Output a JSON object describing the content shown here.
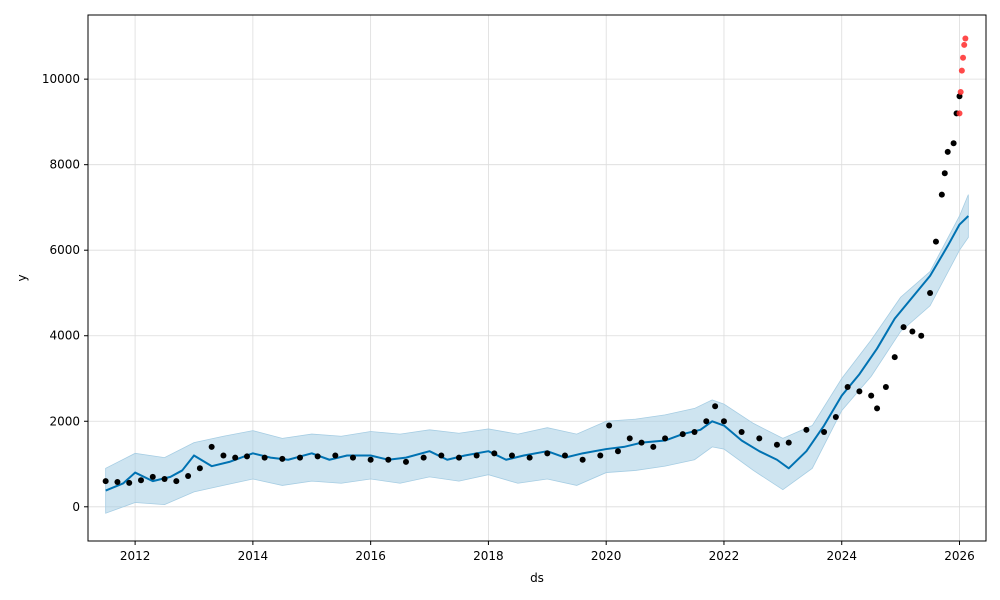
{
  "chart_data": {
    "type": "scatter",
    "title": "",
    "xlabel": "ds",
    "ylabel": "y",
    "xlim": [
      2011.2,
      2026.45
    ],
    "ylim": [
      -800,
      11500
    ],
    "x_ticks": [
      2012,
      2014,
      2016,
      2018,
      2020,
      2022,
      2024,
      2026
    ],
    "x_tick_labels": [
      "2012",
      "2014",
      "2016",
      "2018",
      "2020",
      "2022",
      "2024",
      "2026"
    ],
    "y_ticks": [
      0,
      2000,
      4000,
      6000,
      8000,
      10000
    ],
    "y_tick_labels": [
      "0",
      "2000",
      "4000",
      "6000",
      "8000",
      "10000"
    ],
    "grid": true,
    "colors": {
      "observed": "#000000",
      "outlier": "#ff2a2a",
      "forecast": "#0072B2",
      "interval": "#a6cde3"
    },
    "series": [
      {
        "kind": "uncertainty_band",
        "x": [
          2011.5,
          2012.0,
          2012.5,
          2013.0,
          2013.5,
          2014.0,
          2014.5,
          2015.0,
          2015.5,
          2016.0,
          2016.5,
          2017.0,
          2017.5,
          2018.0,
          2018.5,
          2019.0,
          2019.5,
          2020.0,
          2020.5,
          2021.0,
          2021.5,
          2021.8,
          2022.0,
          2022.5,
          2023.0,
          2023.5,
          2024.0,
          2024.5,
          2025.0,
          2025.5,
          2026.0,
          2026.15
        ],
        "upper": [
          900,
          1250,
          1150,
          1500,
          1650,
          1780,
          1600,
          1700,
          1650,
          1760,
          1700,
          1800,
          1720,
          1820,
          1700,
          1850,
          1700,
          2000,
          2050,
          2150,
          2300,
          2500,
          2400,
          1950,
          1600,
          1900,
          3000,
          3900,
          4900,
          5500,
          6800,
          7300
        ],
        "lower": [
          -150,
          100,
          50,
          350,
          500,
          650,
          500,
          600,
          550,
          650,
          550,
          700,
          600,
          750,
          550,
          650,
          500,
          800,
          850,
          950,
          1100,
          1400,
          1350,
          850,
          400,
          900,
          2250,
          3050,
          4100,
          4700,
          6000,
          6300
        ]
      },
      {
        "kind": "forecast",
        "x": [
          2011.5,
          2011.8,
          2012.0,
          2012.3,
          2012.6,
          2012.8,
          2013.0,
          2013.3,
          2013.6,
          2014.0,
          2014.3,
          2014.6,
          2015.0,
          2015.3,
          2015.6,
          2016.0,
          2016.3,
          2016.6,
          2017.0,
          2017.3,
          2017.6,
          2018.0,
          2018.3,
          2018.6,
          2019.0,
          2019.3,
          2019.6,
          2020.0,
          2020.3,
          2020.6,
          2021.0,
          2021.3,
          2021.6,
          2021.8,
          2022.0,
          2022.3,
          2022.6,
          2022.9,
          2023.1,
          2023.4,
          2023.7,
          2024.0,
          2024.3,
          2024.6,
          2024.9,
          2025.2,
          2025.5,
          2025.8,
          2026.0,
          2026.15
        ],
        "y": [
          380,
          550,
          800,
          600,
          700,
          850,
          1200,
          950,
          1050,
          1250,
          1150,
          1100,
          1250,
          1100,
          1200,
          1200,
          1100,
          1150,
          1300,
          1100,
          1200,
          1300,
          1100,
          1200,
          1300,
          1150,
          1250,
          1350,
          1400,
          1500,
          1550,
          1700,
          1800,
          2000,
          1900,
          1550,
          1300,
          1100,
          900,
          1300,
          1900,
          2600,
          3100,
          3700,
          4400,
          4900,
          5400,
          6100,
          6600,
          6800
        ]
      },
      {
        "kind": "observed",
        "x": [
          2011.5,
          2011.7,
          2011.9,
          2012.1,
          2012.3,
          2012.5,
          2012.7,
          2012.9,
          2013.1,
          2013.3,
          2013.5,
          2013.7,
          2013.9,
          2014.2,
          2014.5,
          2014.8,
          2015.1,
          2015.4,
          2015.7,
          2016.0,
          2016.3,
          2016.6,
          2016.9,
          2017.2,
          2017.5,
          2017.8,
          2018.1,
          2018.4,
          2018.7,
          2019.0,
          2019.3,
          2019.6,
          2019.9,
          2020.05,
          2020.2,
          2020.4,
          2020.6,
          2020.8,
          2021.0,
          2021.3,
          2021.5,
          2021.7,
          2021.85,
          2022.0,
          2022.3,
          2022.6,
          2022.9,
          2023.1,
          2023.4,
          2023.7,
          2023.9,
          2024.1,
          2024.3,
          2024.5,
          2024.6,
          2024.75,
          2024.9,
          2025.05,
          2025.2,
          2025.35,
          2025.5,
          2025.6,
          2025.7,
          2025.75,
          2025.8,
          2025.9,
          2025.95,
          2026.0
        ],
        "y": [
          600,
          580,
          560,
          620,
          700,
          650,
          600,
          720,
          900,
          1400,
          1200,
          1150,
          1180,
          1150,
          1120,
          1150,
          1180,
          1200,
          1150,
          1100,
          1100,
          1050,
          1150,
          1200,
          1150,
          1200,
          1250,
          1200,
          1150,
          1250,
          1200,
          1100,
          1200,
          1900,
          1300,
          1600,
          1500,
          1400,
          1600,
          1700,
          1750,
          2000,
          2350,
          2000,
          1750,
          1600,
          1450,
          1500,
          1800,
          1750,
          2100,
          2800,
          2700,
          2600,
          2300,
          2800,
          3500,
          4200,
          4100,
          4000,
          5000,
          6200,
          7300,
          7800,
          8300,
          8500,
          9200,
          9600
        ]
      },
      {
        "kind": "outliers",
        "x": [
          2026.0,
          2026.02,
          2026.04,
          2026.06,
          2026.08,
          2026.1
        ],
        "y": [
          9200,
          9700,
          10200,
          10500,
          10800,
          10950
        ]
      }
    ]
  }
}
